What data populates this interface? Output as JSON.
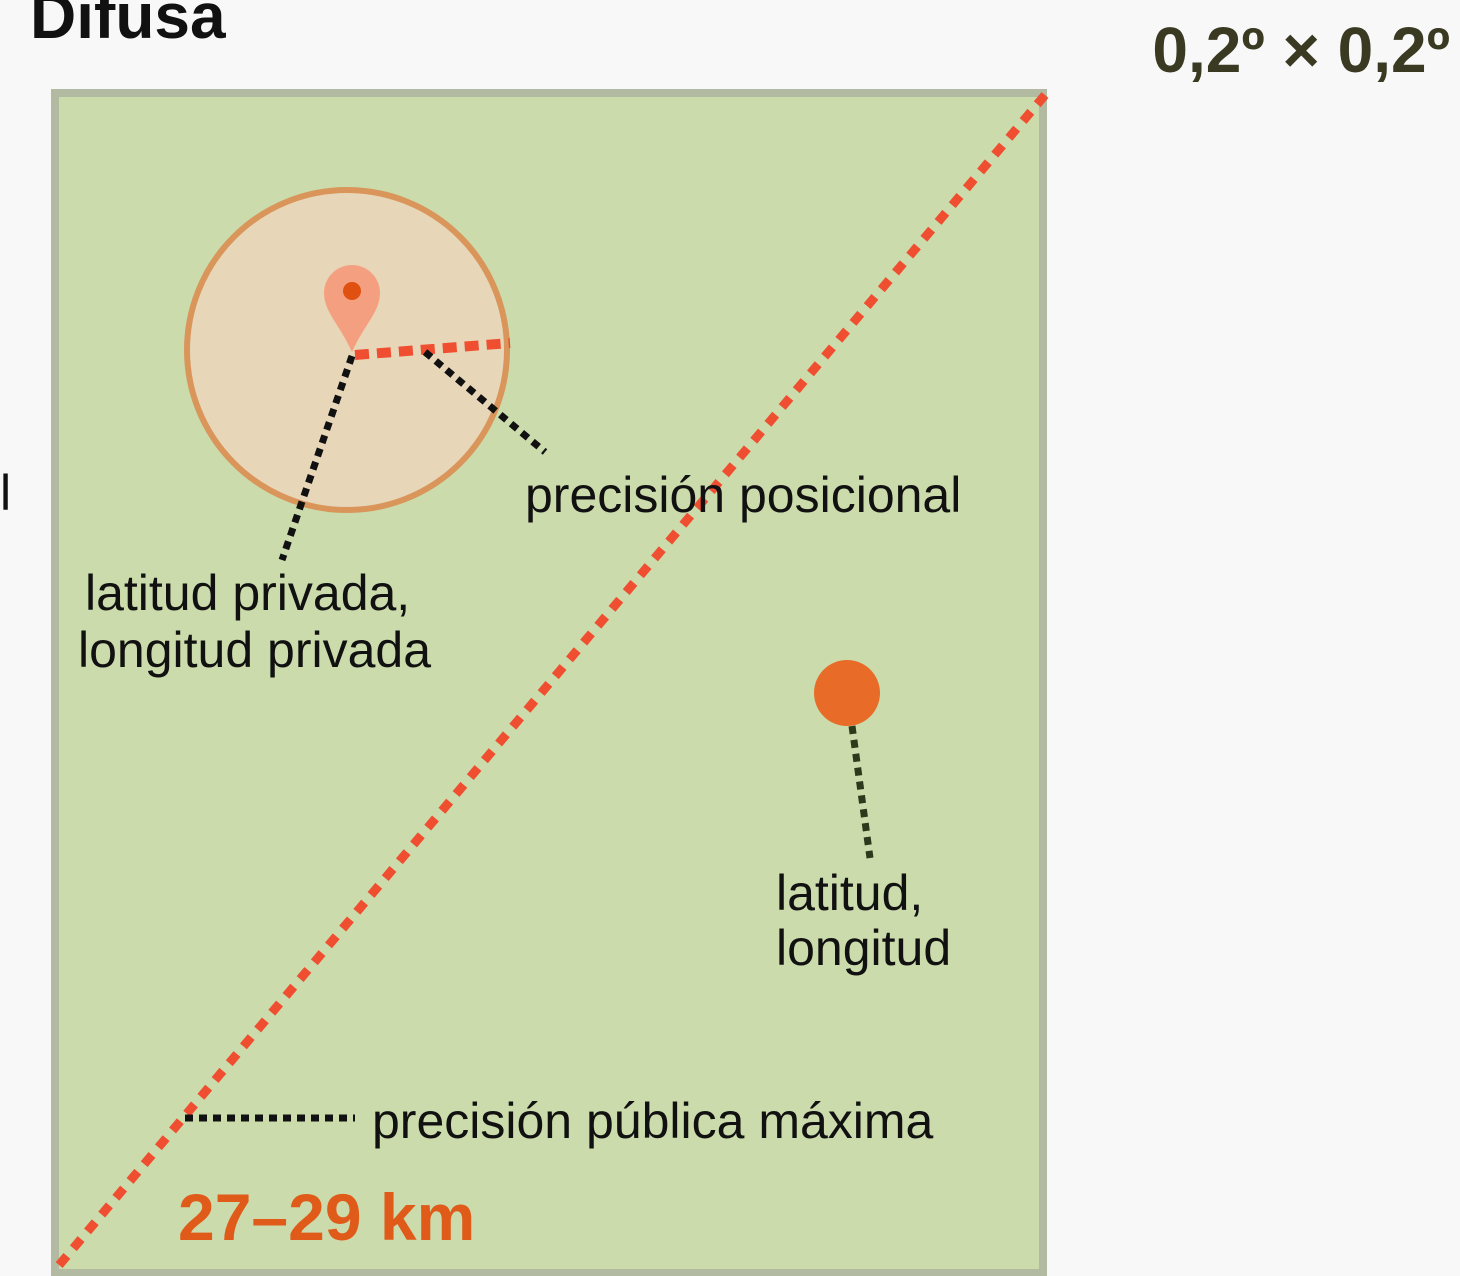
{
  "title": "Difusa",
  "cell_size": "0,2º × 0,2º",
  "left_fragment": "l",
  "labels": {
    "positional_accuracy": "precisión posicional",
    "private_coordinates": [
      "latitud privada,",
      "longitud privada"
    ],
    "public_coordinates": [
      "latitud,",
      "longitud"
    ],
    "max_public_precision": "precisión pública máxima"
  },
  "diagonal_length": "27–29 km"
}
